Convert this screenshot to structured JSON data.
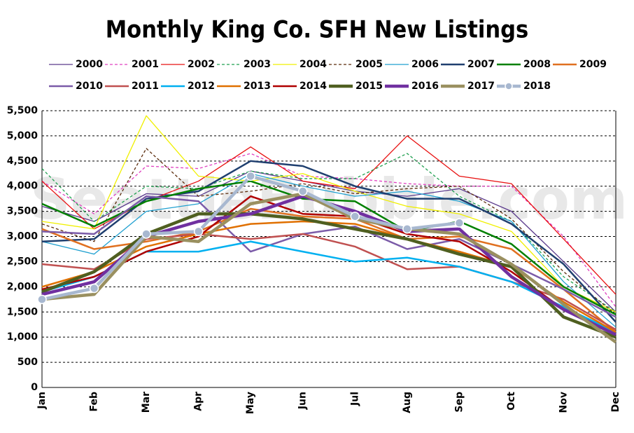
{
  "chart_data": {
    "type": "line",
    "title": "Monthly King Co. SFH New Listings",
    "watermark": "SeattleBubble.com",
    "categories": [
      "Jan",
      "Feb",
      "Mar",
      "Apr",
      "May",
      "Jun",
      "Jul",
      "Aug",
      "Sep",
      "Oct",
      "Nov",
      "Dec"
    ],
    "ylim": [
      0,
      5500
    ],
    "yticks": [
      0,
      500,
      {
        "value": 1000,
        "label": "1,000"
      },
      {
        "value": 1500,
        "label": "1,500"
      },
      {
        "value": 2000,
        "label": "2,000"
      },
      {
        "value": 2500,
        "label": "2,500"
      },
      {
        "value": 3000,
        "label": "3,000"
      },
      {
        "value": 3500,
        "label": "3,500"
      },
      {
        "value": 4000,
        "label": "4,000"
      },
      {
        "value": 4500,
        "label": "4,500"
      },
      {
        "value": 5000,
        "label": "5,000"
      },
      {
        "value": 5500,
        "label": "5,500"
      }
    ],
    "grid": true,
    "legend": "top",
    "series": [
      {
        "name": "2000",
        "color": "#5b3a8c",
        "weight": "thin",
        "values": [
          3600,
          3300,
          3850,
          3800,
          4300,
          4100,
          3900,
          3800,
          3950,
          3500,
          2500,
          1500
        ]
      },
      {
        "name": "2001",
        "color": "#e040c0",
        "weight": "thin",
        "dashed": true,
        "values": [
          4100,
          3450,
          4400,
          4350,
          4650,
          4200,
          4150,
          4050,
          4000,
          4000,
          3000,
          1600
        ]
      },
      {
        "name": "2002",
        "color": "#e81010",
        "weight": "thin",
        "values": [
          4100,
          3150,
          3700,
          4100,
          4780,
          4100,
          3950,
          5000,
          4200,
          4050,
          2950,
          1850
        ]
      },
      {
        "name": "2003",
        "color": "#20a050",
        "weight": "thin",
        "dashed": true,
        "values": [
          4350,
          3300,
          4000,
          3950,
          4300,
          4150,
          4150,
          4650,
          3800,
          3300,
          2200,
          1500
        ]
      },
      {
        "name": "2004",
        "color": "#f0f000",
        "weight": "thin",
        "values": [
          3300,
          3150,
          5400,
          4200,
          4100,
          4250,
          3900,
          3600,
          3450,
          3100,
          2000,
          1500
        ]
      },
      {
        "name": "2005",
        "color": "#5a2a0a",
        "weight": "thin",
        "dashed": true,
        "values": [
          3250,
          2900,
          4750,
          3800,
          3900,
          4050,
          3850,
          3950,
          4000,
          3350,
          2300,
          1450
        ]
      },
      {
        "name": "2006",
        "color": "#20a0d0",
        "weight": "thin",
        "values": [
          2900,
          2650,
          3500,
          3650,
          4250,
          4000,
          3800,
          3900,
          3700,
          3300,
          2100,
          1200
        ]
      },
      {
        "name": "2007",
        "color": "#1f3f6f",
        "weight": "medium",
        "values": [
          2900,
          2950,
          3750,
          3900,
          4500,
          4400,
          4000,
          3750,
          3750,
          3250,
          2450,
          1300
        ]
      },
      {
        "name": "2008",
        "color": "#008000",
        "weight": "medium",
        "values": [
          3650,
          3200,
          3700,
          3950,
          4100,
          3750,
          3700,
          3100,
          3300,
          2850,
          2000,
          1450
        ]
      },
      {
        "name": "2009",
        "color": "#e07020",
        "weight": "medium",
        "values": [
          3150,
          2750,
          2900,
          3100,
          3550,
          3400,
          3350,
          2950,
          3000,
          2750,
          1950,
          1100
        ]
      },
      {
        "name": "2010",
        "color": "#7b5ba8",
        "weight": "medium",
        "values": [
          3100,
          3050,
          3800,
          3700,
          2700,
          3050,
          3200,
          2750,
          2950,
          2450,
          1950,
          1400
        ]
      },
      {
        "name": "2011",
        "color": "#c05050",
        "weight": "medium",
        "values": [
          2450,
          2350,
          2950,
          3050,
          2950,
          3050,
          2800,
          2350,
          2400,
          2100,
          1750,
          1150
        ]
      },
      {
        "name": "2012",
        "color": "#00b0f0",
        "weight": "medium",
        "values": [
          1900,
          2200,
          2700,
          2700,
          2900,
          2700,
          2500,
          2580,
          2400,
          2100,
          1600,
          1100
        ]
      },
      {
        "name": "2013",
        "color": "#e07000",
        "weight": "medium",
        "values": [
          2000,
          2300,
          2800,
          3050,
          3250,
          3300,
          3250,
          2950,
          2700,
          2400,
          1700,
          1100
        ]
      },
      {
        "name": "2014",
        "color": "#b00000",
        "weight": "medium",
        "values": [
          1950,
          2200,
          2700,
          3000,
          3800,
          3450,
          3400,
          3050,
          2900,
          2300,
          1550,
          1050
        ]
      },
      {
        "name": "2015",
        "color": "#4f5f20",
        "weight": "thick",
        "values": [
          1900,
          2300,
          3050,
          3450,
          3450,
          3350,
          3150,
          2950,
          2650,
          2400,
          1400,
          1000
        ]
      },
      {
        "name": "2016",
        "color": "#7030a0",
        "weight": "thick",
        "values": [
          1850,
          2100,
          3000,
          3300,
          3450,
          3800,
          3500,
          3100,
          3150,
          2200,
          1550,
          1050
        ]
      },
      {
        "name": "2017",
        "color": "#9a9060",
        "weight": "thick",
        "values": [
          1750,
          1850,
          3000,
          2900,
          3650,
          3850,
          3350,
          3150,
          3050,
          2450,
          1650,
          900
        ]
      },
      {
        "name": "2018",
        "color": "#a8b8d0",
        "weight": "thick",
        "markers": true,
        "values": [
          1750,
          1970,
          3050,
          3100,
          4200,
          3900,
          3400,
          3150,
          3270,
          null,
          null,
          null
        ]
      }
    ]
  }
}
